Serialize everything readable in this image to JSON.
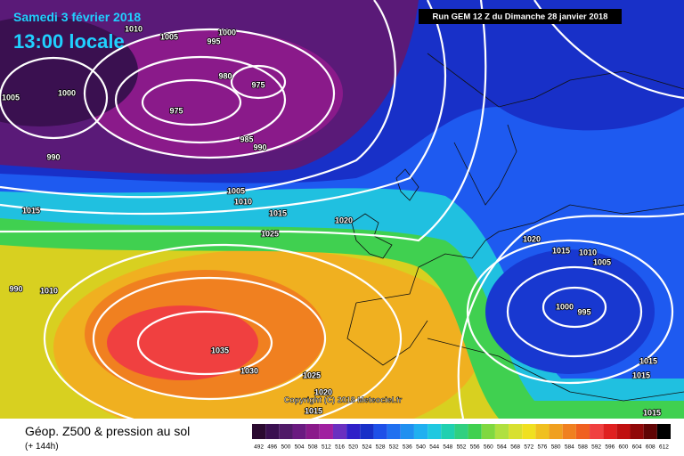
{
  "header": {
    "date": "Samedi 3 février 2018",
    "time": "13:00 locale",
    "run": "Run GEM 12 Z du Dimanche 28 janvier 2018"
  },
  "copyright": "Copyright (C) 2018 Meteociel.fr",
  "footer": {
    "title": "Géop. Z500 & pression au sol",
    "lead": "(+ 144h)"
  },
  "color_scale": {
    "values": [
      492,
      496,
      500,
      504,
      508,
      512,
      516,
      520,
      524,
      528,
      532,
      536,
      540,
      544,
      548,
      552,
      556,
      560,
      564,
      568,
      572,
      576,
      580,
      584,
      588,
      592,
      596,
      600,
      604,
      608,
      612
    ],
    "colors": [
      "#2a0a30",
      "#3a1050",
      "#501a68",
      "#6a1a80",
      "#8a1a8a",
      "#a020a0",
      "#6a30c0",
      "#3020c8",
      "#1830c8",
      "#1e50e8",
      "#2070f0",
      "#2090f0",
      "#20b0f0",
      "#20c8e0",
      "#20d0b0",
      "#30d080",
      "#40d050",
      "#80d840",
      "#b0e040",
      "#d8e030",
      "#f0e020",
      "#f0c020",
      "#f0a020",
      "#f08020",
      "#f06020",
      "#f04040",
      "#e02020",
      "#c01010",
      "#900808",
      "#600404",
      "#000000"
    ]
  },
  "isobar_labels": [
    1010,
    1005,
    995,
    1000,
    1005,
    1000,
    980,
    975,
    975,
    990,
    985,
    990,
    1005,
    1010,
    1015,
    1015,
    1020,
    1025,
    1020,
    1015,
    1010,
    1005,
    1000,
    995,
    990,
    1010,
    1035,
    1030,
    1025,
    1020,
    1015,
    1015,
    1015,
    1015
  ]
}
